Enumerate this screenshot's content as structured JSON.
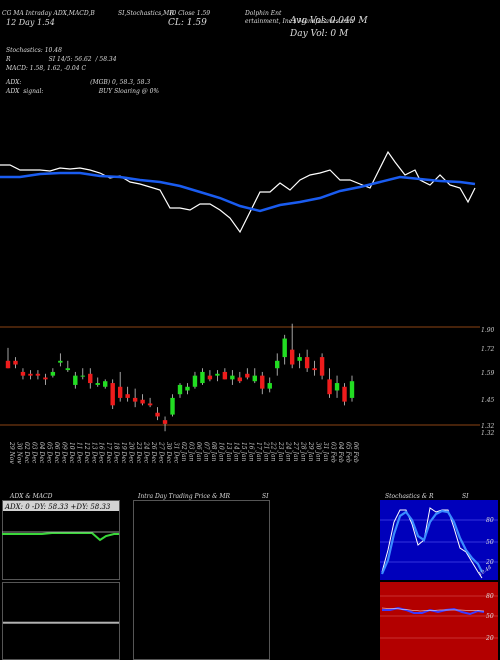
{
  "header": {
    "links_line": "CG MA Intraday ADX,MACD,B",
    "links_line_2": "SI,Stochastics,MR",
    "title_line": "Dolphin Ent",
    "title_line_2": "ertainment, Inc.) ManafaSaves.com",
    "chart_label": "(0 Close 1.59",
    "day_label": "12 Day 1.54",
    "cl_label": "CL: 1.59",
    "avg_vol": "Avg Vol: 0.049 M",
    "day_vol": "Day Vol: 0   M",
    "stochastics": "Stochastics: 10.48",
    "rsi_line": "R                    SI 14/5: 56.62  / 58.34",
    "macd_line": "MACD: 1.58, 1.62, -0.04   C",
    "adx_line": "ADX:                                    (MGB) 0, 58.3, 58.3",
    "signal_line": "ADX  signal:                             BUY Sloaring @ 0%"
  },
  "price_panel": {
    "y_labels": [
      "1.90",
      "1.72",
      "1.59",
      "1.45",
      "1.32",
      "1.32"
    ]
  },
  "date_axis": {
    "labels": [
      "29 Nov",
      "30 Nov",
      "02 Dec",
      "03 Dec",
      "04 Dec",
      "05 Dec",
      "06 Dec",
      "09 Dec",
      "10 Dec",
      "11 Dec",
      "12 Dec",
      "13 Dec",
      "16 Dec",
      "17 Dec",
      "18 Dec",
      "19 Dec",
      "20 Dec",
      "23 Dec",
      "24 Dec",
      "26 Dec",
      "27 Dec",
      "30 Dec",
      "31 Dec",
      "02 Jan",
      "03 Jan",
      "06 Jan",
      "07 Jan",
      "08 Jan",
      "10 Jan",
      "13 Jan",
      "14 Jan",
      "15 Jan",
      "16 Jan",
      "17 Jan",
      "21 Jan",
      "22 Jan",
      "23 Jan",
      "24 Jan",
      "27 Jan",
      "28 Jan",
      "29 Jan",
      "30 Jan",
      "31 Jan",
      "03 Feb",
      "04 Feb",
      "05 Feb",
      "06 Feb"
    ]
  },
  "panels": {
    "adx_title": "ADX  & MACD",
    "adx_readout": "ADX: 0  -DY: 58.33  +DY: 58.33",
    "intraday_title": "Intra  Day Trading Price  & MR",
    "intraday_title_2": "SI",
    "stoch_title": "Stochastics & R",
    "stoch_title_2": "SI",
    "stoch_labels": [
      "80",
      "50",
      "20",
      "10.48"
    ],
    "rsi_labels": [
      "80",
      "50",
      "20"
    ]
  },
  "chart_data": {
    "type": "candlestick",
    "categories": [
      "29 Nov",
      "30 Nov",
      "02 Dec",
      "03 Dec",
      "04 Dec",
      "05 Dec",
      "06 Dec",
      "09 Dec",
      "10 Dec",
      "11 Dec",
      "12 Dec",
      "13 Dec",
      "16 Dec",
      "17 Dec",
      "18 Dec",
      "19 Dec",
      "20 Dec",
      "23 Dec",
      "24 Dec",
      "26 Dec",
      "27 Dec",
      "30 Dec",
      "31 Dec",
      "02 Jan",
      "03 Jan",
      "06 Jan",
      "07 Jan",
      "08 Jan",
      "10 Jan",
      "13 Jan",
      "14 Jan",
      "15 Jan",
      "16 Jan",
      "17 Jan",
      "21 Jan",
      "22 Jan",
      "23 Jan",
      "24 Jan",
      "27 Jan",
      "28 Jan",
      "29 Jan",
      "30 Jan",
      "31 Jan",
      "03 Feb",
      "04 Feb",
      "05 Feb",
      "06 Feb"
    ],
    "ylim": [
      1.3,
      1.92
    ],
    "ohlc": [
      [
        1.7,
        1.77,
        1.66,
        1.66
      ],
      [
        1.7,
        1.72,
        1.66,
        1.68
      ],
      [
        1.64,
        1.66,
        1.6,
        1.62
      ],
      [
        1.63,
        1.65,
        1.6,
        1.62
      ],
      [
        1.63,
        1.65,
        1.6,
        1.62
      ],
      [
        1.61,
        1.63,
        1.57,
        1.6
      ],
      [
        1.62,
        1.66,
        1.61,
        1.64
      ],
      [
        1.69,
        1.74,
        1.67,
        1.7
      ],
      [
        1.65,
        1.7,
        1.64,
        1.66
      ],
      [
        1.57,
        1.64,
        1.55,
        1.62
      ],
      [
        1.62,
        1.66,
        1.6,
        1.62
      ],
      [
        1.63,
        1.66,
        1.55,
        1.58
      ],
      [
        1.57,
        1.61,
        1.56,
        1.58
      ],
      [
        1.56,
        1.6,
        1.55,
        1.59
      ],
      [
        1.58,
        1.6,
        1.44,
        1.46
      ],
      [
        1.56,
        1.64,
        1.48,
        1.5
      ],
      [
        1.52,
        1.56,
        1.48,
        1.5
      ],
      [
        1.5,
        1.55,
        1.45,
        1.48
      ],
      [
        1.49,
        1.52,
        1.46,
        1.47
      ],
      [
        1.47,
        1.5,
        1.45,
        1.46
      ],
      [
        1.42,
        1.45,
        1.38,
        1.4
      ],
      [
        1.38,
        1.4,
        1.32,
        1.36
      ],
      [
        1.41,
        1.52,
        1.4,
        1.5
      ],
      [
        1.52,
        1.58,
        1.5,
        1.57
      ],
      [
        1.54,
        1.58,
        1.52,
        1.56
      ],
      [
        1.56,
        1.64,
        1.55,
        1.62
      ],
      [
        1.58,
        1.66,
        1.57,
        1.64
      ],
      [
        1.62,
        1.65,
        1.59,
        1.6
      ],
      [
        1.62,
        1.65,
        1.59,
        1.63
      ],
      [
        1.64,
        1.66,
        1.6,
        1.6
      ],
      [
        1.6,
        1.65,
        1.57,
        1.62
      ],
      [
        1.61,
        1.64,
        1.58,
        1.59
      ],
      [
        1.63,
        1.66,
        1.6,
        1.61
      ],
      [
        1.59,
        1.66,
        1.58,
        1.62
      ],
      [
        1.62,
        1.64,
        1.52,
        1.55
      ],
      [
        1.55,
        1.61,
        1.53,
        1.58
      ],
      [
        1.66,
        1.74,
        1.62,
        1.7
      ],
      [
        1.72,
        1.84,
        1.68,
        1.82
      ],
      [
        1.76,
        1.9,
        1.66,
        1.68
      ],
      [
        1.7,
        1.74,
        1.66,
        1.72
      ],
      [
        1.72,
        1.76,
        1.64,
        1.66
      ],
      [
        1.66,
        1.7,
        1.62,
        1.65
      ],
      [
        1.72,
        1.74,
        1.6,
        1.62
      ],
      [
        1.6,
        1.66,
        1.5,
        1.52
      ],
      [
        1.54,
        1.62,
        1.5,
        1.58
      ],
      [
        1.56,
        1.58,
        1.46,
        1.48
      ],
      [
        1.5,
        1.62,
        1.48,
        1.59
      ]
    ]
  }
}
